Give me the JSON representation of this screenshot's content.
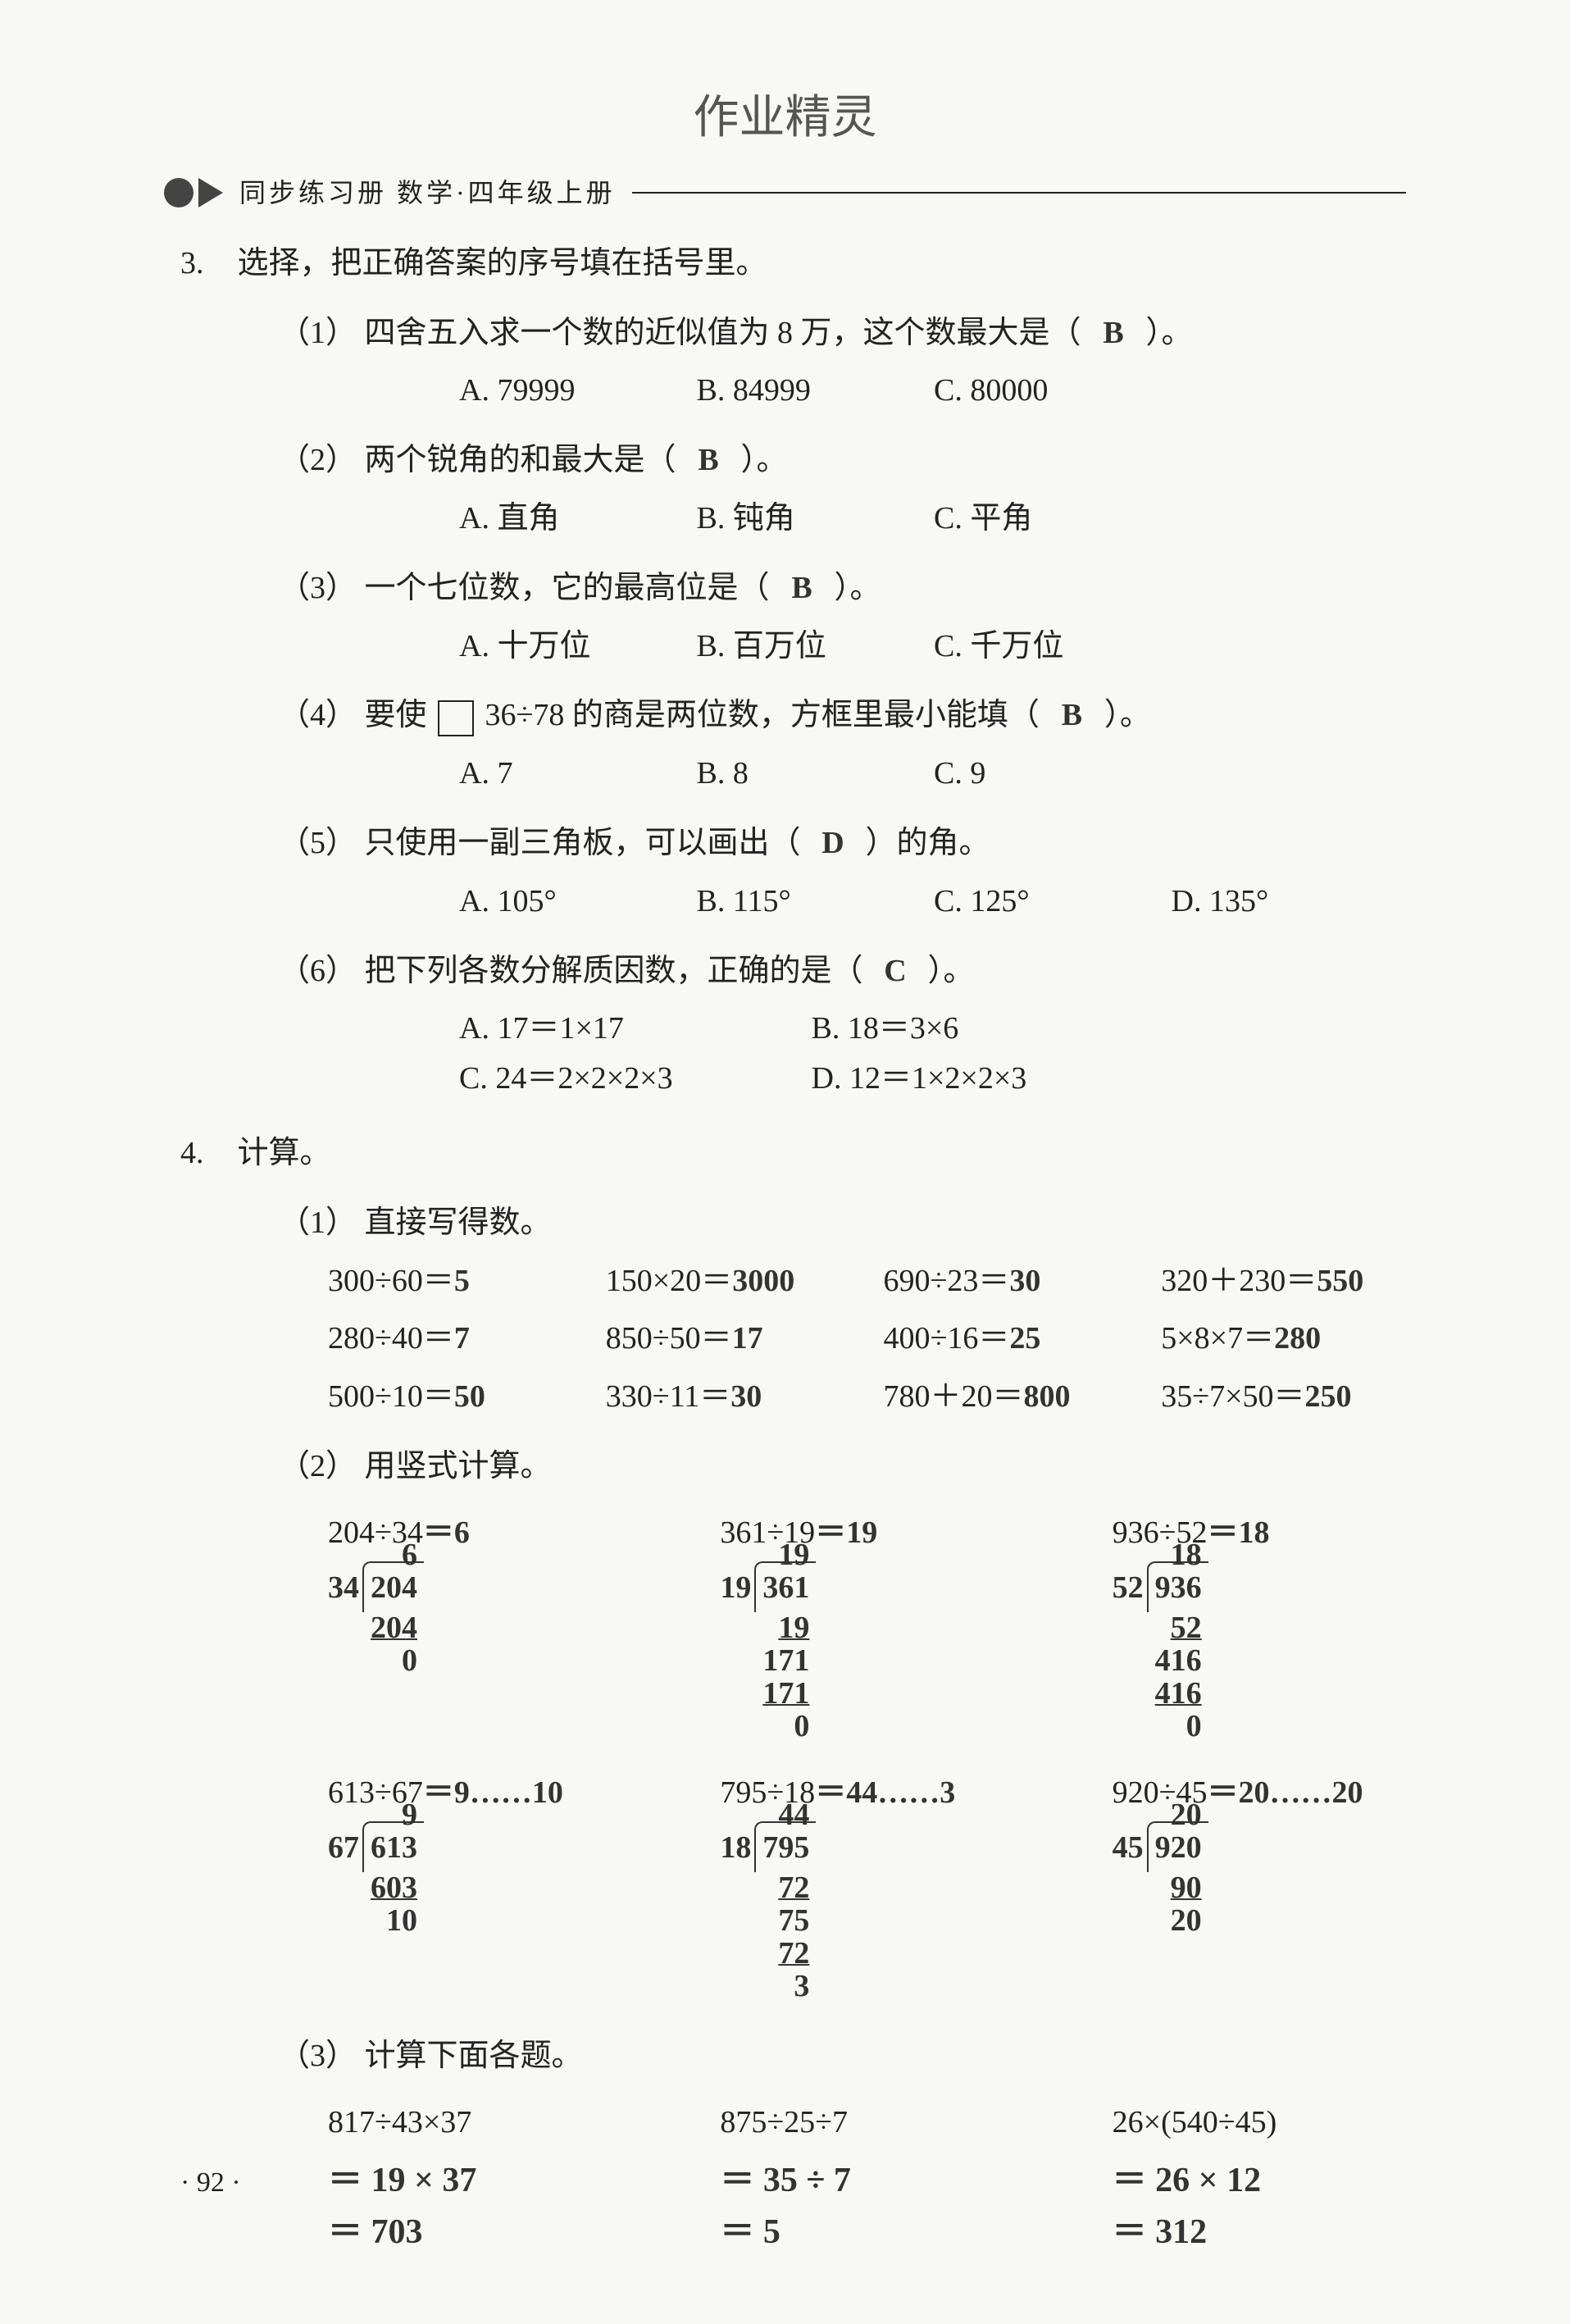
{
  "watermark": "作业精灵",
  "book_title": "同步练习册  数学·四年级上册",
  "q3": {
    "number": "3.",
    "stem": "选择，把正确答案的序号填在括号里。",
    "items": [
      {
        "label": "（1）",
        "text_before": "四舍五入求一个数的近似值为 8 万，这个数最大是（",
        "answer": "B",
        "text_after": "）。",
        "options": [
          {
            "k": "A.",
            "v": "79999"
          },
          {
            "k": "B.",
            "v": "84999"
          },
          {
            "k": "C.",
            "v": "80000"
          }
        ]
      },
      {
        "label": "（2）",
        "text_before": "两个锐角的和最大是（",
        "answer": "B",
        "text_after": "）。",
        "options": [
          {
            "k": "A.",
            "v": "直角"
          },
          {
            "k": "B.",
            "v": "钝角"
          },
          {
            "k": "C.",
            "v": "平角"
          }
        ]
      },
      {
        "label": "（3）",
        "text_before": "一个七位数，它的最高位是（",
        "answer": "B",
        "text_after": "）。",
        "options": [
          {
            "k": "A.",
            "v": "十万位"
          },
          {
            "k": "B.",
            "v": "百万位"
          },
          {
            "k": "C.",
            "v": "千万位"
          }
        ]
      },
      {
        "label": "（4）",
        "text_before": "要使",
        "text_mid": "36÷78 的商是两位数，方框里最小能填（",
        "answer": "B",
        "text_after": "）。",
        "options": [
          {
            "k": "A.",
            "v": "7"
          },
          {
            "k": "B.",
            "v": "8"
          },
          {
            "k": "C.",
            "v": "9"
          }
        ],
        "has_box": true
      },
      {
        "label": "（5）",
        "text_before": "只使用一副三角板，可以画出（",
        "answer": "D",
        "text_after": "）的角。",
        "options": [
          {
            "k": "A.",
            "v": "105°"
          },
          {
            "k": "B.",
            "v": "115°"
          },
          {
            "k": "C.",
            "v": "125°"
          },
          {
            "k": "D.",
            "v": "135°"
          }
        ]
      },
      {
        "label": "（6）",
        "text_before": "把下列各数分解质因数，正确的是（",
        "answer": "C",
        "text_after": "）。",
        "options_2col": [
          {
            "k": "A.",
            "v": "17＝1×17"
          },
          {
            "k": "B.",
            "v": "18＝3×6"
          },
          {
            "k": "C.",
            "v": "24＝2×2×2×3"
          },
          {
            "k": "D.",
            "v": "12＝1×2×2×3"
          }
        ]
      }
    ]
  },
  "q4": {
    "number": "4.",
    "stem": "计算。",
    "part1": {
      "label": "（1）",
      "title": "直接写得数。",
      "rows": [
        [
          {
            "expr": "300÷60＝",
            "ans": "5"
          },
          {
            "expr": "150×20＝",
            "ans": "3000"
          },
          {
            "expr": "690÷23＝",
            "ans": "30"
          },
          {
            "expr": "320＋230＝",
            "ans": "550"
          }
        ],
        [
          {
            "expr": "280÷40＝",
            "ans": "7"
          },
          {
            "expr": "850÷50＝",
            "ans": "17"
          },
          {
            "expr": "400÷16＝",
            "ans": "25"
          },
          {
            "expr": "5×8×7＝",
            "ans": "280"
          }
        ],
        [
          {
            "expr": "500÷10＝",
            "ans": "50"
          },
          {
            "expr": "330÷11＝",
            "ans": "30"
          },
          {
            "expr": "780＋20＝",
            "ans": "800"
          },
          {
            "expr": "35÷7×50＝",
            "ans": "250"
          }
        ]
      ]
    },
    "part2": {
      "label": "（2）",
      "title": "用竖式计算。",
      "row1": [
        {
          "expr": "204÷34",
          "ans_inline": "＝6",
          "divisor": "34",
          "dividend": "204",
          "quotient": "6",
          "steps": [
            "204",
            "0"
          ],
          "underline_idx": [
            0
          ]
        },
        {
          "expr": "361÷19",
          "ans_inline": "＝19",
          "divisor": "19",
          "dividend": "361",
          "quotient": "19",
          "steps": [
            "19 ",
            "171",
            "171",
            "0"
          ],
          "underline_idx": [
            0,
            2
          ]
        },
        {
          "expr": "936÷52",
          "ans_inline": "＝18",
          "divisor": "52",
          "dividend": "936",
          "quotient": "18",
          "steps": [
            "52 ",
            "416",
            "416",
            "0"
          ],
          "underline_idx": [
            0,
            2
          ]
        }
      ],
      "row2": [
        {
          "expr": "613÷67",
          "ans_inline": "＝9……10",
          "divisor": "67",
          "dividend": "613",
          "quotient": "9",
          "steps": [
            "603",
            "10"
          ],
          "underline_idx": [
            0
          ]
        },
        {
          "expr": "795÷18",
          "ans_inline": "＝44……3",
          "divisor": "18",
          "dividend": "795",
          "quotient": "44",
          "steps": [
            "72 ",
            "75",
            "72",
            "3"
          ],
          "underline_idx": [
            0,
            2
          ]
        },
        {
          "expr": "920÷45",
          "ans_inline": "＝20……20",
          "divisor": "45",
          "dividend": "920",
          "quotient": "20",
          "steps": [
            "90 ",
            "20"
          ],
          "underline_idx": [
            0
          ]
        }
      ]
    },
    "part3": {
      "label": "（3）",
      "title": "计算下面各题。",
      "cols": [
        {
          "expr": "817÷43×37",
          "work": "＝ 19 × 37\n＝ 703"
        },
        {
          "expr": "875÷25÷7",
          "work": "＝ 35 ÷ 7\n＝ 5"
        },
        {
          "expr": "26×(540÷45)",
          "work": "＝ 26 × 12\n＝ 312"
        }
      ]
    }
  },
  "page_number": "· 92 ·"
}
